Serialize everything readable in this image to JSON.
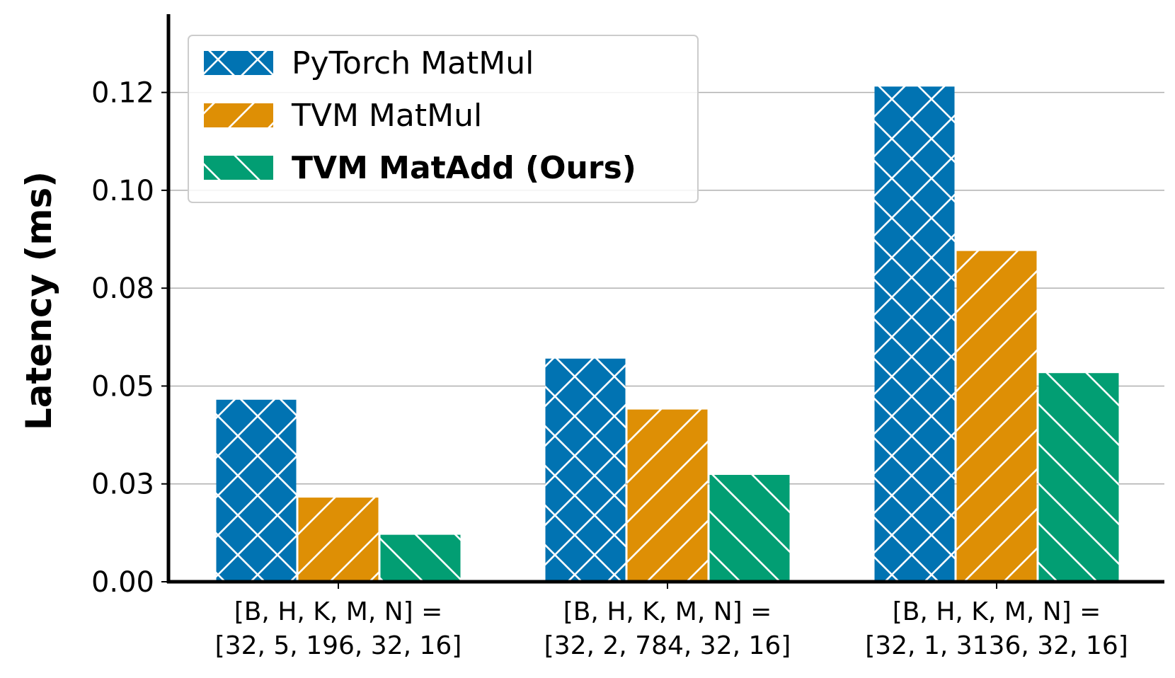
{
  "chart_data": {
    "type": "bar",
    "ylabel": "Latency (ms)",
    "xlabel": "",
    "categories": [
      [
        "[B, H, K, M, N] =",
        "[32, 5, 196, 32, 16]"
      ],
      [
        "[B, H, K, M, N] =",
        "[32, 2, 784, 32, 16]"
      ],
      [
        "[B, H, K, M, N] =",
        "[32, 1, 3136, 32, 16]"
      ]
    ],
    "series": [
      {
        "name": "PyTorch MatMul",
        "color": "#0173b2",
        "hatch": "cross",
        "bold": false,
        "values": [
          0.0465,
          0.057,
          0.1265
        ]
      },
      {
        "name": "TVM MatMul",
        "color": "#de8f05",
        "hatch": "forward",
        "bold": false,
        "values": [
          0.0215,
          0.044,
          0.0845
        ]
      },
      {
        "name": "TVM MatAdd (Ours)",
        "color": "#029e73",
        "hatch": "back",
        "bold": true,
        "values": [
          0.012,
          0.0273,
          0.0533
        ]
      }
    ],
    "ylim": [
      0,
      0.145
    ],
    "yticks": [
      {
        "value": 0.0,
        "label": "0.00"
      },
      {
        "value": 0.025,
        "label": "0.03"
      },
      {
        "value": 0.05,
        "label": "0.05"
      },
      {
        "value": 0.075,
        "label": "0.08"
      },
      {
        "value": 0.1,
        "label": "0.10"
      },
      {
        "value": 0.125,
        "label": "0.12"
      }
    ],
    "grid": "y",
    "legend_position": "top-left"
  }
}
